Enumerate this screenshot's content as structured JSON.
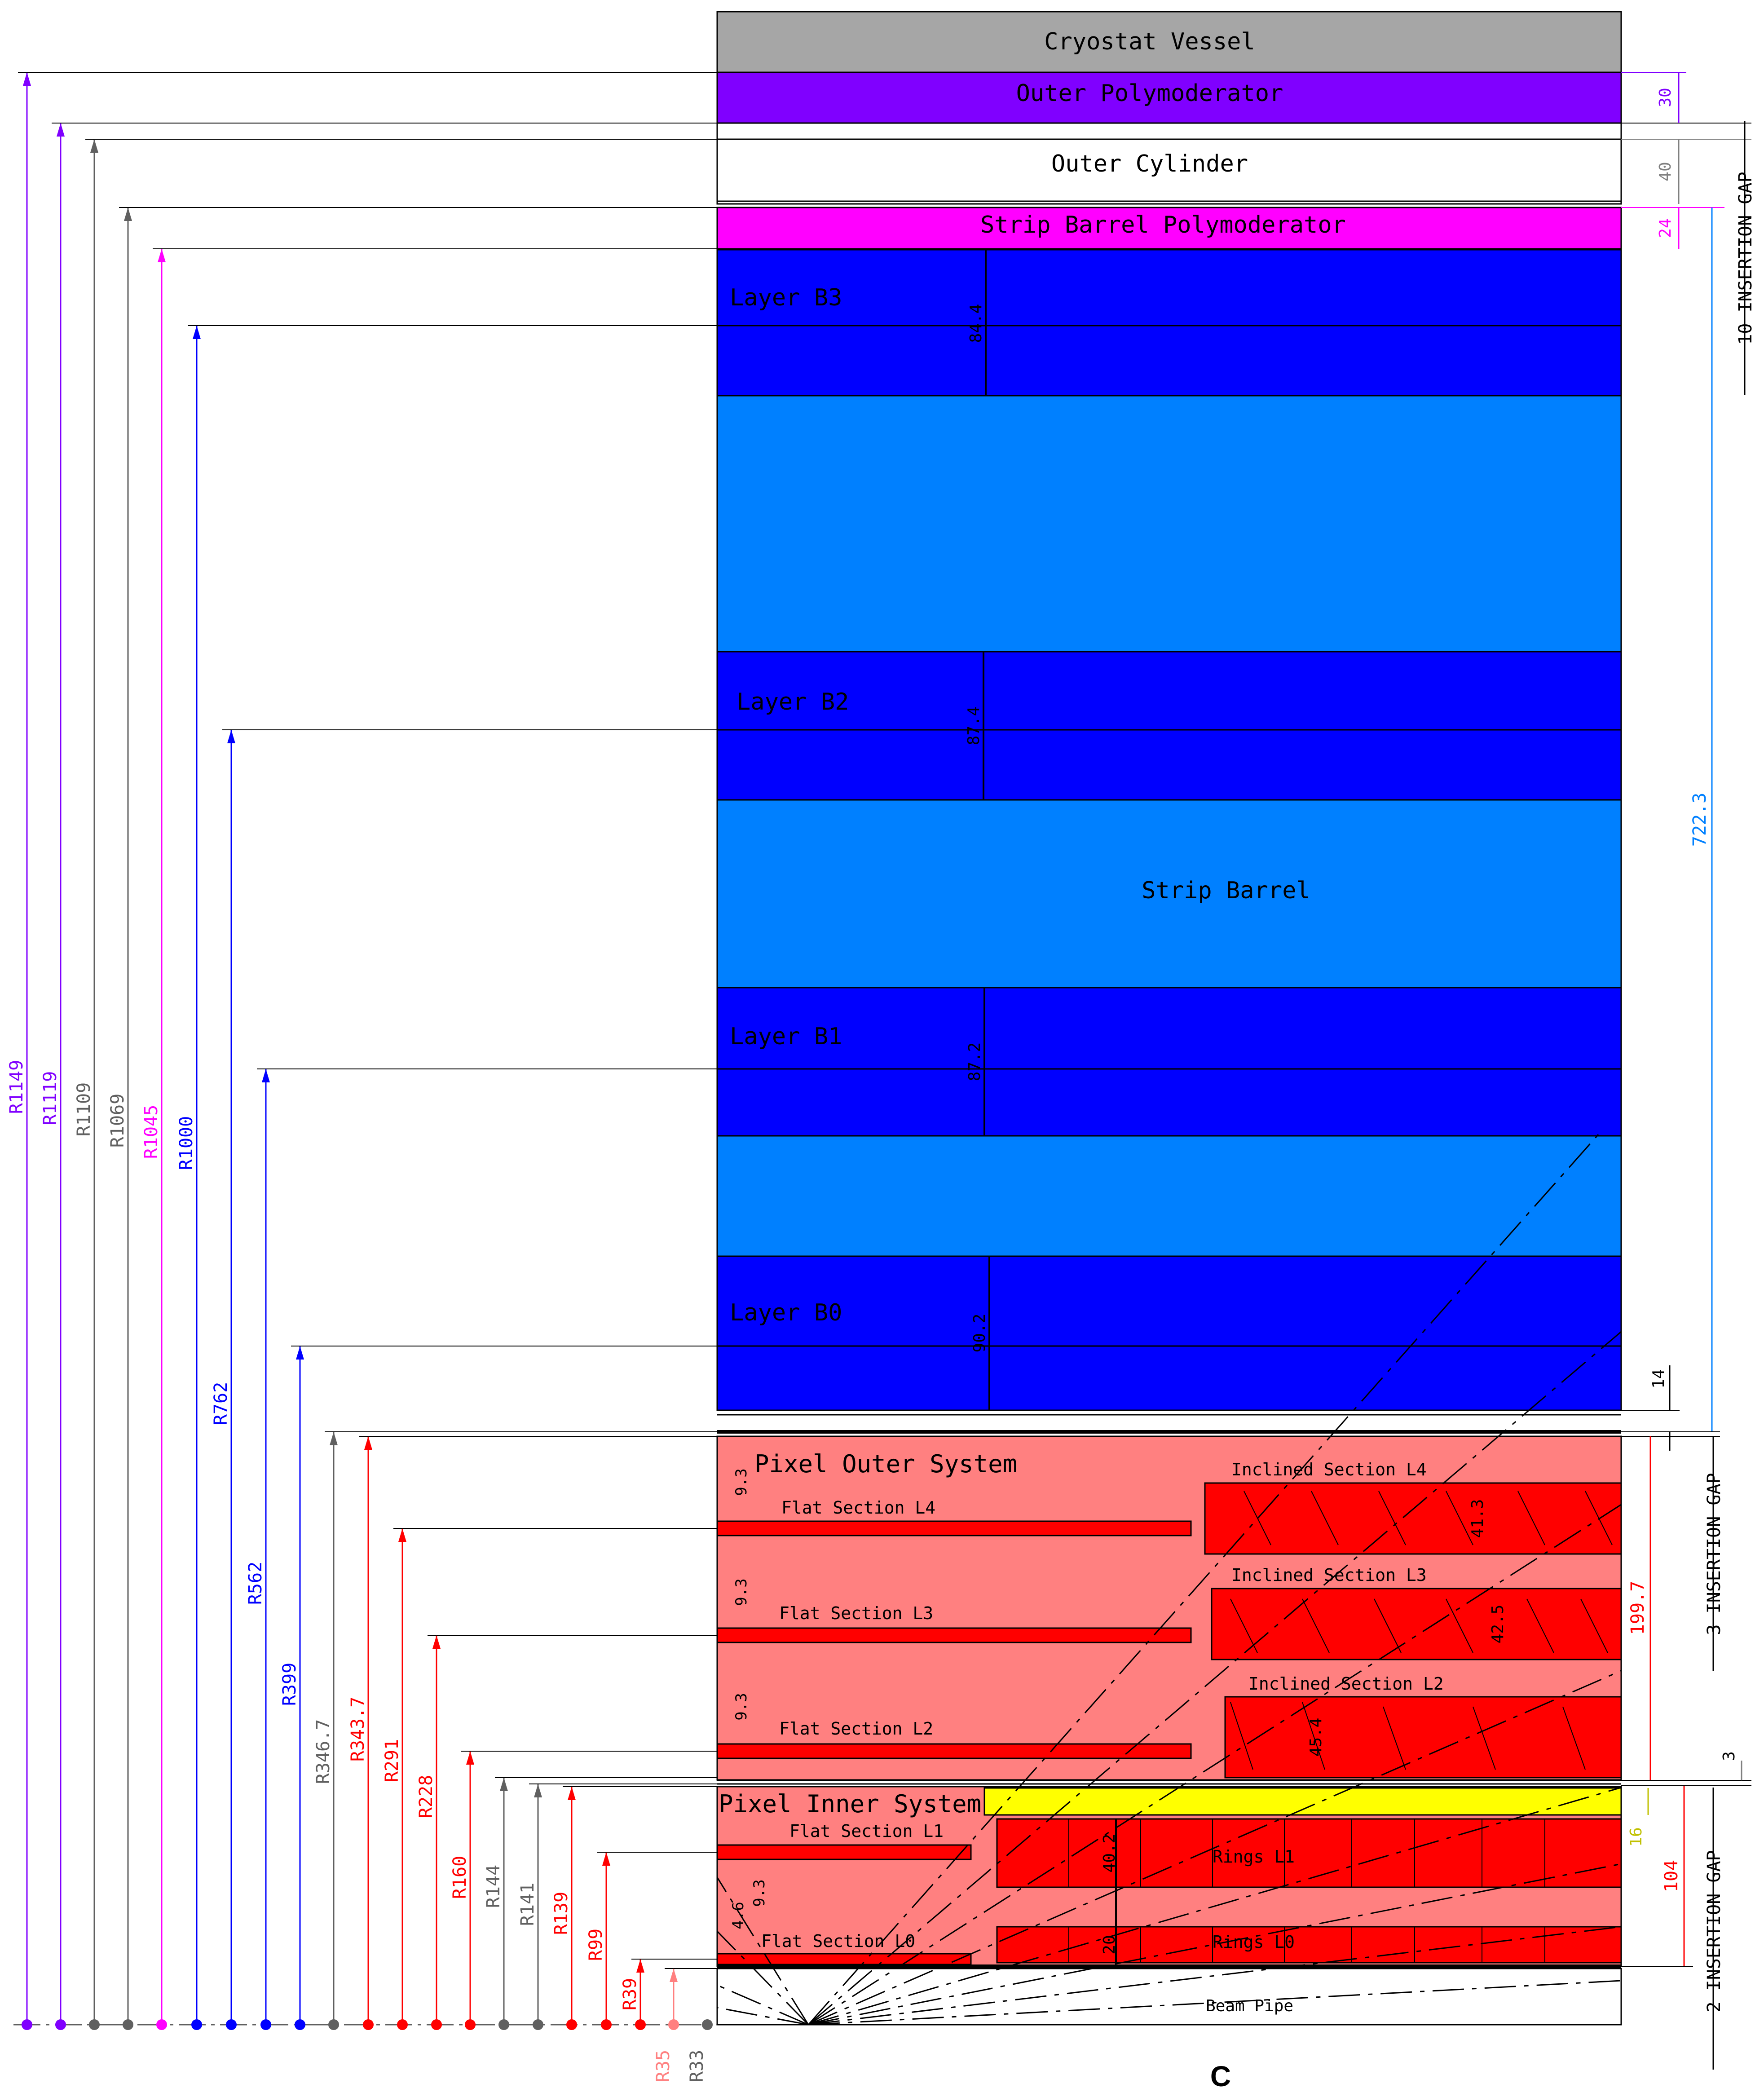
{
  "regions": {
    "cryostat": {
      "label": "Cryostat Vessel",
      "color": "#a6a6a6"
    },
    "outer_polymod": {
      "label": "Outer Polymoderator",
      "color": "#8000ff"
    },
    "outer_cylinder": {
      "label": "Outer Cylinder",
      "color": "#ffffff"
    },
    "strip_polymod": {
      "label": "Strip Barrel Polymoderator",
      "color": "#ff00ff"
    },
    "strip_barrel": {
      "label": "Strip Barrel",
      "color": "#0080ff"
    },
    "strip_layer_color": "#0000ff",
    "pixel_outer": {
      "label": "Pixel Outer System",
      "color": "#ff8080"
    },
    "pixel_inner": {
      "label": "Pixel Inner System",
      "color": "#ff8080"
    },
    "pixel_module_color": "#ff0000",
    "yellow_service_color": "#ffff00",
    "beam_pipe": {
      "label": "Beam Pipe"
    }
  },
  "strip_layers": [
    {
      "label": "Layer B3",
      "thickness": "84.4"
    },
    {
      "label": "Layer B2",
      "thickness": "87.4"
    },
    {
      "label": "Layer B1",
      "thickness": "87.2"
    },
    {
      "label": "Layer B0",
      "thickness": "90.2"
    }
  ],
  "pixel_flat_sections": [
    {
      "label": "Flat Section L4",
      "gap": "9.3"
    },
    {
      "label": "Flat Section L3",
      "gap": "9.3"
    },
    {
      "label": "Flat Section L2",
      "gap": "9.3"
    },
    {
      "label": "Flat Section L1",
      "gap": "9.3"
    },
    {
      "label": "Flat Section L0",
      "gap": "4.6"
    }
  ],
  "pixel_inclined_sections": [
    {
      "label": "Inclined Section L4",
      "thickness": "41.3"
    },
    {
      "label": "Inclined Section L3",
      "thickness": "42.5"
    },
    {
      "label": "Inclined Section L2",
      "thickness": "45.4"
    }
  ],
  "pixel_rings": [
    {
      "label": "Rings L1",
      "thickness": "40.2"
    },
    {
      "label": "Rings L0",
      "thickness": "20"
    }
  ],
  "radius_labels": [
    {
      "text": "R1149",
      "color": "#8000ff"
    },
    {
      "text": "R1119",
      "color": "#8000ff"
    },
    {
      "text": "R1109",
      "color": "#606060"
    },
    {
      "text": "R1069",
      "color": "#606060"
    },
    {
      "text": "R1045",
      "color": "#ff00ff"
    },
    {
      "text": "R1000",
      "color": "#0000ff"
    },
    {
      "text": "R762",
      "color": "#0000ff"
    },
    {
      "text": "R562",
      "color": "#0000ff"
    },
    {
      "text": "R399",
      "color": "#0000ff"
    },
    {
      "text": "R346.7",
      "color": "#606060"
    },
    {
      "text": "R343.7",
      "color": "#ff0000"
    },
    {
      "text": "R291",
      "color": "#ff0000"
    },
    {
      "text": "R228",
      "color": "#ff0000"
    },
    {
      "text": "R160",
      "color": "#ff0000"
    },
    {
      "text": "R144",
      "color": "#606060"
    },
    {
      "text": "R141",
      "color": "#606060"
    },
    {
      "text": "R139",
      "color": "#ff0000"
    },
    {
      "text": "R99",
      "color": "#ff0000"
    },
    {
      "text": "R39",
      "color": "#ff0000"
    },
    {
      "text": "R35",
      "color": "#ff8080"
    },
    {
      "text": "R33",
      "color": "#606060"
    }
  ],
  "right_dimensions": {
    "polymod_outer": {
      "text": "30",
      "color": "#8000ff"
    },
    "outer_cylinder": {
      "text": "40",
      "color": "#808080"
    },
    "strip_polymod": {
      "text": "24",
      "color": "#ff00ff"
    },
    "strip_total": {
      "text": "722.3",
      "color": "#0080ff"
    },
    "gap_strip_pixel": {
      "text": "14",
      "color": "#000000"
    },
    "pixel_outer_total": {
      "text": "199.7",
      "color": "#ff0000"
    },
    "gap_pixel_outer_inner": {
      "text": "3",
      "color": "#000000"
    },
    "yellow_thickness": {
      "text": "16",
      "color": "#c0c000"
    },
    "pixel_inner_total": {
      "text": "104",
      "color": "#ff0000"
    }
  },
  "insertion_gaps": [
    "10 INSERTION GAP",
    "3 INSERTION GAP",
    "2 INSERTION GAP"
  ],
  "view_label": "C"
}
